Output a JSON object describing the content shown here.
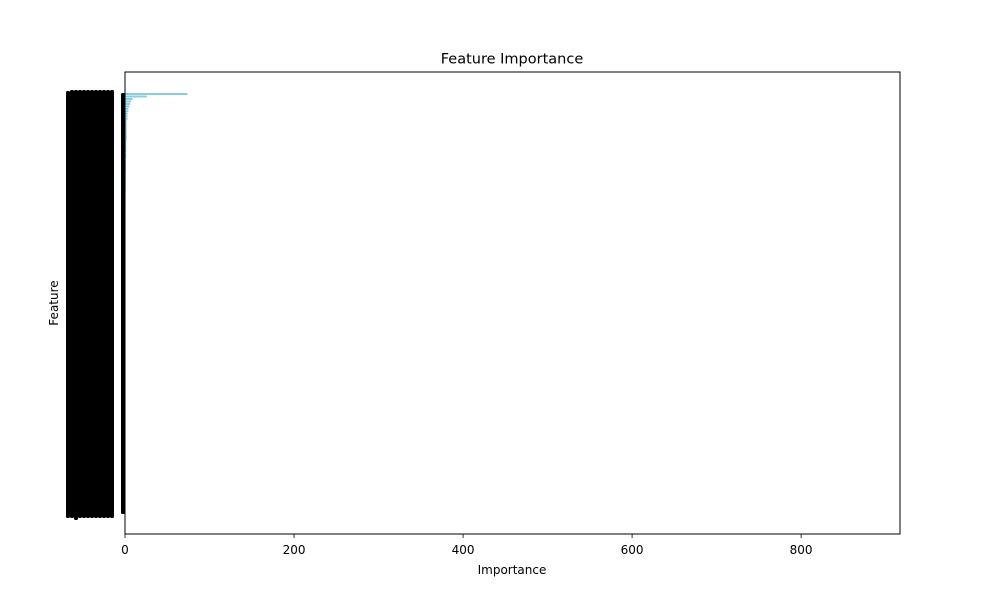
{
  "chart_data": {
    "type": "bar",
    "orientation": "horizontal",
    "title": "Feature Importance",
    "xlabel": "Importance",
    "ylabel": "Feature",
    "xlim": [
      0,
      917
    ],
    "xticks": [
      0,
      200,
      400,
      600,
      800
    ],
    "grid": false,
    "legend": "none",
    "bar_color": "#87cedd",
    "series": [
      {
        "values": [
          74,
          26,
          9,
          7,
          6,
          5,
          4,
          4,
          3,
          3,
          3,
          2,
          2,
          2,
          2,
          2,
          2,
          2,
          2,
          1.5,
          1.5,
          1.5,
          1.5,
          1.5,
          1.5,
          1.5,
          1.2,
          1.2,
          1.2,
          1.2,
          1.2,
          1.2,
          1,
          1,
          1,
          1,
          1,
          1,
          1,
          1,
          0.8,
          0.8,
          0.8,
          0.8,
          0.8,
          0.8,
          0.8,
          0.8,
          0.8,
          0.6,
          0.6,
          0.6,
          0.6,
          0.6,
          0.6,
          0.6,
          0.6,
          0.6,
          0.6,
          0.5,
          0.5,
          0.5,
          0.5,
          0.5,
          0.5,
          0.5,
          0.5,
          0.5,
          0.5,
          0.4,
          0.4,
          0.4,
          0.4,
          0.4,
          0.4,
          0.4,
          0.4,
          0.4,
          0.4,
          0.3,
          0.3,
          0.3,
          0.3,
          0.3,
          0.3,
          0.3,
          0.3,
          0.3,
          0.3,
          0.2,
          0.2,
          0.2,
          0.2,
          0.2,
          0.2,
          0.2,
          0.2,
          0.2,
          0.2,
          0.2,
          0.1,
          0.1,
          0.1,
          0.1,
          0.1,
          0.1,
          0.1,
          0.1,
          0.1,
          0.1,
          0.1,
          0.1,
          0.1,
          0.1,
          0.1,
          0.1,
          0.1,
          0.1,
          0.1,
          0.1,
          0.05,
          0.05,
          0.05,
          0.05,
          0.05,
          0.05,
          0.05,
          0.05,
          0.05,
          0.05,
          0.05,
          0.05,
          0.05,
          0.05,
          0.05,
          0.05,
          0.05,
          0.05,
          0.05,
          0.05,
          0.02,
          0.02,
          0.02,
          0.02,
          0.02,
          0.02,
          0.02,
          0.02,
          0.02,
          0.02,
          0.02,
          0.02,
          0.02,
          0.02,
          0.02,
          0.02,
          0.02,
          0.02,
          0.02,
          0.02,
          0.01,
          0.01,
          0.01,
          0.01,
          0.01,
          0.01,
          0.01,
          0.01,
          0.01,
          0.01
        ]
      }
    ]
  }
}
